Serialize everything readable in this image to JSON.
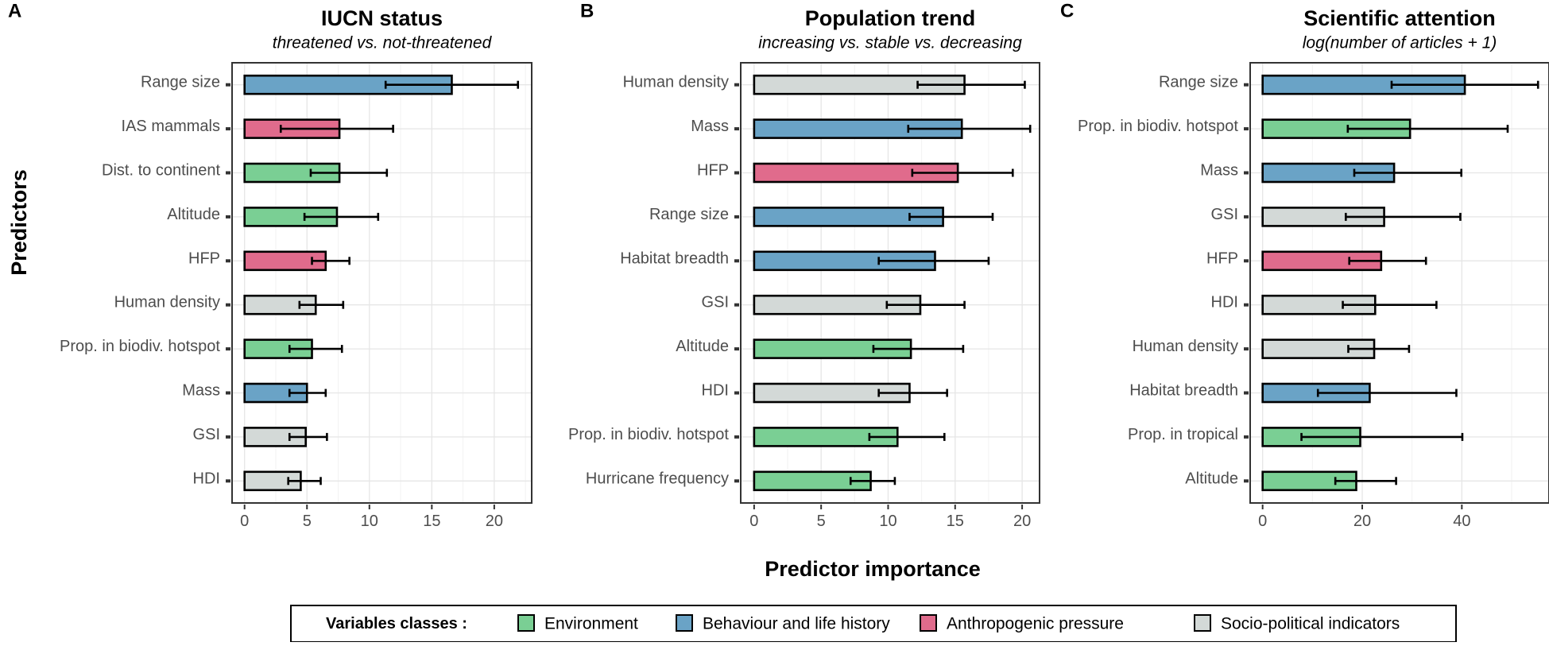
{
  "figure": {
    "y_axis_title": "Predictors",
    "x_axis_title": "Predictor importance",
    "legend": {
      "title": "Variables classes :",
      "items": [
        {
          "key": "env",
          "label": "Environment",
          "color": "#7acf94"
        },
        {
          "key": "beh",
          "label": "Behaviour and life history",
          "color": "#6aa3c6"
        },
        {
          "key": "anth",
          "label": "Anthropogenic pressure",
          "color": "#e06b8c"
        },
        {
          "key": "soc",
          "label": "Socio-political indicators",
          "color": "#d3d9d7"
        }
      ]
    }
  },
  "chart_data": [
    {
      "type": "bar",
      "orientation": "horizontal",
      "panel": "A",
      "title": "IUCN status",
      "subtitle": "threatened vs. not-threatened",
      "xlim": [
        -1.0,
        23.0
      ],
      "xticks": [
        0,
        5,
        10,
        15,
        20
      ],
      "categories": [
        "Range size",
        "IAS mammals",
        "Dist. to continent",
        "Altitude",
        "HFP",
        "Human density",
        "Prop. in biodiv. hotspot",
        "Mass",
        "GSI",
        "HDI"
      ],
      "values": [
        16.6,
        7.6,
        7.6,
        7.4,
        6.5,
        5.7,
        5.4,
        5.0,
        4.9,
        4.5
      ],
      "error_low": [
        11.3,
        2.9,
        5.3,
        4.8,
        5.4,
        4.4,
        3.6,
        3.6,
        3.6,
        3.5
      ],
      "error_high": [
        21.9,
        11.9,
        11.4,
        10.7,
        8.4,
        7.9,
        7.8,
        6.5,
        6.6,
        6.1
      ],
      "classes": [
        "beh",
        "anth",
        "env",
        "env",
        "anth",
        "soc",
        "env",
        "beh",
        "soc",
        "soc"
      ]
    },
    {
      "type": "bar",
      "orientation": "horizontal",
      "panel": "B",
      "title": "Population trend",
      "subtitle": "increasing vs. stable vs. decreasing",
      "xlim": [
        -1.0,
        21.3
      ],
      "xticks": [
        0,
        5,
        10,
        15,
        20
      ],
      "categories": [
        "Human density",
        "Mass",
        "HFP",
        "Range size",
        "Habitat breadth",
        "GSI",
        "Altitude",
        "HDI",
        "Prop. in biodiv. hotspot",
        "Hurricane frequency"
      ],
      "values": [
        15.7,
        15.5,
        15.2,
        14.1,
        13.5,
        12.4,
        11.7,
        11.6,
        10.7,
        8.7
      ],
      "error_low": [
        12.2,
        11.5,
        11.8,
        11.6,
        9.3,
        9.9,
        8.9,
        9.3,
        8.6,
        7.2
      ],
      "error_high": [
        20.2,
        20.6,
        19.3,
        17.8,
        17.5,
        15.7,
        15.6,
        14.4,
        14.2,
        10.5
      ],
      "classes": [
        "soc",
        "beh",
        "anth",
        "beh",
        "beh",
        "soc",
        "env",
        "soc",
        "env",
        "env"
      ]
    },
    {
      "type": "bar",
      "orientation": "horizontal",
      "panel": "C",
      "title": "Scientific attention",
      "subtitle": "log(number of articles + 1)",
      "xlim": [
        -2.5,
        57.5
      ],
      "xticks": [
        0,
        20,
        40
      ],
      "categories": [
        "Range size",
        "Prop. in biodiv. hotspot",
        "Mass",
        "GSI",
        "HFP",
        "HDI",
        "Human density",
        "Habitat breadth",
        "Prop. in tropical",
        "Altitude"
      ],
      "values": [
        40.6,
        29.6,
        26.4,
        24.4,
        23.8,
        22.6,
        22.4,
        21.5,
        19.6,
        18.8
      ],
      "error_low": [
        25.9,
        17.1,
        18.4,
        16.7,
        17.4,
        16.1,
        17.2,
        11.1,
        7.8,
        14.6
      ],
      "error_high": [
        55.3,
        49.2,
        39.9,
        39.7,
        32.8,
        34.9,
        29.4,
        38.9,
        40.1,
        26.8
      ],
      "classes": [
        "beh",
        "env",
        "beh",
        "soc",
        "anth",
        "soc",
        "soc",
        "beh",
        "env",
        "env"
      ]
    }
  ]
}
